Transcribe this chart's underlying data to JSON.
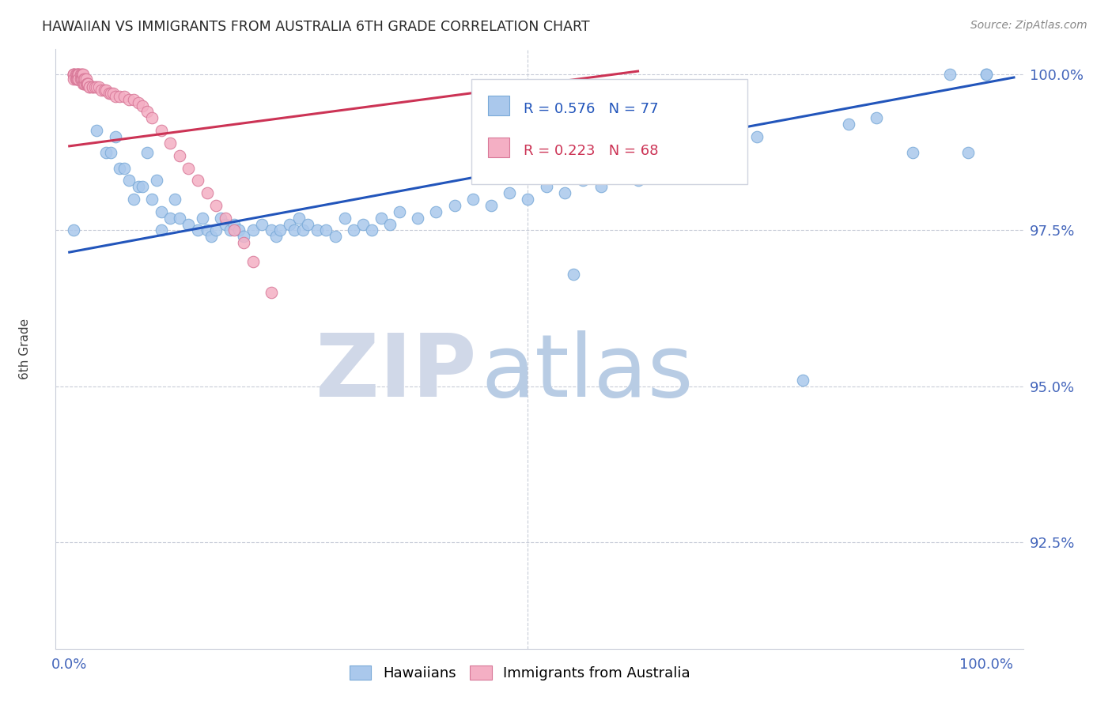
{
  "title": "HAWAIIAN VS IMMIGRANTS FROM AUSTRALIA 6TH GRADE CORRELATION CHART",
  "source": "Source: ZipAtlas.com",
  "ylabel": "6th Grade",
  "ymin": 0.908,
  "ymax": 1.004,
  "xmin": -0.015,
  "xmax": 1.04,
  "blue_R": 0.576,
  "blue_N": 77,
  "pink_R": 0.223,
  "pink_N": 68,
  "blue_color": "#aac8ec",
  "blue_edge": "#7aaad8",
  "pink_color": "#f4afc4",
  "pink_edge": "#d87898",
  "blue_line_color": "#2255bb",
  "pink_line_color": "#cc3355",
  "legend_blue_label": "Hawaiians",
  "legend_pink_label": "Immigrants from Australia",
  "watermark_zip": "ZIP",
  "watermark_atlas": "atlas",
  "watermark_zip_color": "#d0d8e8",
  "watermark_atlas_color": "#b8cce4",
  "grid_color": "#c8ccd8",
  "title_color": "#282828",
  "right_label_color": "#4466bb",
  "bottom_label_color": "#4466bb",
  "ytick_vals": [
    0.925,
    0.95,
    0.975,
    1.0
  ],
  "ytick_labels": [
    "92.5%",
    "95.0%",
    "97.5%",
    "100.0%"
  ],
  "blue_x": [
    0.005,
    0.03,
    0.04,
    0.045,
    0.05,
    0.055,
    0.06,
    0.065,
    0.07,
    0.075,
    0.08,
    0.085,
    0.09,
    0.095,
    0.1,
    0.1,
    0.11,
    0.115,
    0.12,
    0.13,
    0.14,
    0.145,
    0.15,
    0.155,
    0.16,
    0.165,
    0.17,
    0.175,
    0.18,
    0.185,
    0.19,
    0.2,
    0.21,
    0.22,
    0.225,
    0.23,
    0.24,
    0.245,
    0.25,
    0.255,
    0.26,
    0.27,
    0.28,
    0.29,
    0.3,
    0.31,
    0.32,
    0.33,
    0.34,
    0.35,
    0.36,
    0.38,
    0.4,
    0.42,
    0.44,
    0.46,
    0.48,
    0.5,
    0.52,
    0.54,
    0.56,
    0.58,
    0.6,
    0.62,
    0.65,
    0.68,
    0.72,
    0.75,
    0.8,
    0.85,
    0.88,
    0.92,
    0.96,
    0.98,
    1.0,
    1.0,
    0.55
  ],
  "blue_y": [
    0.975,
    0.991,
    0.9875,
    0.9875,
    0.99,
    0.985,
    0.985,
    0.983,
    0.98,
    0.982,
    0.982,
    0.9875,
    0.98,
    0.983,
    0.978,
    0.975,
    0.977,
    0.98,
    0.977,
    0.976,
    0.975,
    0.977,
    0.975,
    0.974,
    0.975,
    0.977,
    0.976,
    0.975,
    0.976,
    0.975,
    0.974,
    0.975,
    0.976,
    0.975,
    0.974,
    0.975,
    0.976,
    0.975,
    0.977,
    0.975,
    0.976,
    0.975,
    0.975,
    0.974,
    0.977,
    0.975,
    0.976,
    0.975,
    0.977,
    0.976,
    0.978,
    0.977,
    0.978,
    0.979,
    0.98,
    0.979,
    0.981,
    0.98,
    0.982,
    0.981,
    0.983,
    0.982,
    0.984,
    0.983,
    0.985,
    0.987,
    0.988,
    0.99,
    0.951,
    0.992,
    0.993,
    0.9875,
    1.0,
    0.9875,
    1.0,
    1.0,
    0.968
  ],
  "pink_x": [
    0.005,
    0.005,
    0.005,
    0.005,
    0.005,
    0.007,
    0.007,
    0.008,
    0.008,
    0.008,
    0.009,
    0.009,
    0.01,
    0.01,
    0.01,
    0.01,
    0.012,
    0.012,
    0.013,
    0.013,
    0.014,
    0.014,
    0.015,
    0.015,
    0.016,
    0.016,
    0.017,
    0.017,
    0.018,
    0.018,
    0.019,
    0.019,
    0.02,
    0.02,
    0.022,
    0.022,
    0.025,
    0.025,
    0.028,
    0.03,
    0.032,
    0.035,
    0.038,
    0.04,
    0.043,
    0.045,
    0.048,
    0.05,
    0.055,
    0.06,
    0.065,
    0.07,
    0.075,
    0.08,
    0.085,
    0.09,
    0.1,
    0.11,
    0.12,
    0.13,
    0.14,
    0.15,
    0.16,
    0.17,
    0.18,
    0.19,
    0.2,
    0.22
  ],
  "pink_y": [
    1.0,
    1.0,
    1.0,
    1.0,
    0.9993,
    1.0,
    0.9993,
    1.0,
    0.9993,
    0.9993,
    1.0,
    0.9993,
    1.0,
    1.0,
    1.0,
    0.9993,
    1.0,
    0.9993,
    1.0,
    0.9993,
    1.0,
    0.9993,
    1.0,
    0.9985,
    0.9985,
    0.9993,
    0.9985,
    0.9993,
    0.9985,
    0.9993,
    0.9985,
    0.9985,
    0.9985,
    0.9985,
    0.998,
    0.998,
    0.998,
    0.998,
    0.998,
    0.998,
    0.998,
    0.9975,
    0.9975,
    0.9975,
    0.997,
    0.997,
    0.997,
    0.9965,
    0.9965,
    0.9965,
    0.996,
    0.996,
    0.9955,
    0.995,
    0.994,
    0.993,
    0.991,
    0.989,
    0.987,
    0.985,
    0.983,
    0.981,
    0.979,
    0.977,
    0.975,
    0.973,
    0.97,
    0.965
  ]
}
